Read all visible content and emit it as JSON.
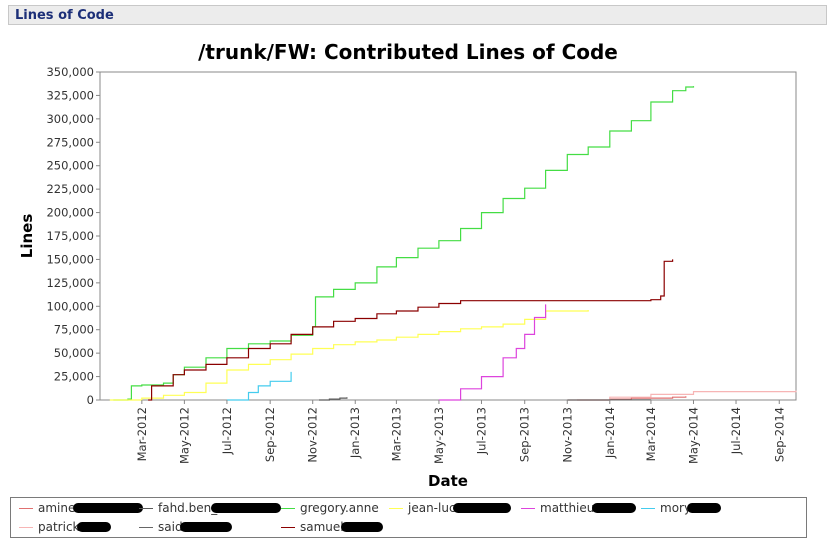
{
  "header": {
    "title": "Lines of Code"
  },
  "chart_data": {
    "type": "line",
    "title": "/trunk/FW: Contributed Lines of Code",
    "xlabel": "Date",
    "ylabel": "Lines",
    "xlim": [
      "2012-01-01",
      "2014-09-25"
    ],
    "ylim": [
      0,
      350000
    ],
    "y_ticks": [
      0,
      25000,
      50000,
      75000,
      100000,
      125000,
      150000,
      175000,
      200000,
      225000,
      250000,
      275000,
      300000,
      325000,
      350000
    ],
    "y_tick_labels": [
      "0",
      "25,000",
      "50,000",
      "75,000",
      "100,000",
      "125,000",
      "150,000",
      "175,000",
      "200,000",
      "225,000",
      "250,000",
      "275,000",
      "300,000",
      "325,000",
      "350,000"
    ],
    "x_ticks": [
      "2012-03-01",
      "2012-05-01",
      "2012-07-01",
      "2012-09-01",
      "2012-11-01",
      "2013-01-01",
      "2013-03-01",
      "2013-05-01",
      "2013-07-01",
      "2013-09-01",
      "2013-11-01",
      "2014-01-01",
      "2014-03-01",
      "2014-05-01",
      "2014-07-01",
      "2014-09-01"
    ],
    "x_tick_labels": [
      "Mar-2012",
      "May-2012",
      "Jul-2012",
      "Sep-2012",
      "Nov-2012",
      "Jan-2013",
      "Mar-2013",
      "May-2013",
      "Jul-2013",
      "Sep-2013",
      "Nov-2013",
      "Jan-2014",
      "Mar-2014",
      "May-2014",
      "Jul-2014",
      "Sep-2014"
    ],
    "grid": false,
    "legend_position": "bottom",
    "series": [
      {
        "name": "amine.",
        "color": "#e07070",
        "points": [
          [
            "2013-11-15",
            0
          ],
          [
            "2014-01-01",
            1000
          ],
          [
            "2014-02-01",
            2000
          ],
          [
            "2014-04-01",
            3000
          ],
          [
            "2014-04-20",
            4000
          ]
        ]
      },
      {
        "name": "fahd.ben_",
        "color": "#5a5a5a",
        "points": [
          [
            "2012-11-10",
            0
          ],
          [
            "2012-11-25",
            1000
          ],
          [
            "2012-12-10",
            2000
          ],
          [
            "2012-12-20",
            3000
          ]
        ]
      },
      {
        "name": "gregory.anne",
        "color": "#44dd44",
        "points": [
          [
            "2012-01-20",
            0
          ],
          [
            "2012-02-10",
            1000
          ],
          [
            "2012-02-15",
            15000
          ],
          [
            "2012-03-01",
            16000
          ],
          [
            "2012-04-01",
            18000
          ],
          [
            "2012-04-15",
            27000
          ],
          [
            "2012-05-01",
            35000
          ],
          [
            "2012-06-01",
            45000
          ],
          [
            "2012-07-01",
            55000
          ],
          [
            "2012-08-01",
            60000
          ],
          [
            "2012-09-01",
            63000
          ],
          [
            "2012-10-01",
            69000
          ],
          [
            "2012-11-01",
            78000
          ],
          [
            "2012-11-05",
            110000
          ],
          [
            "2012-12-01",
            118000
          ],
          [
            "2013-01-01",
            125000
          ],
          [
            "2013-02-01",
            142000
          ],
          [
            "2013-03-01",
            152000
          ],
          [
            "2013-04-01",
            162000
          ],
          [
            "2013-05-01",
            170000
          ],
          [
            "2013-06-01",
            183000
          ],
          [
            "2013-07-01",
            200000
          ],
          [
            "2013-08-01",
            215000
          ],
          [
            "2013-09-01",
            226000
          ],
          [
            "2013-10-01",
            245000
          ],
          [
            "2013-11-01",
            262000
          ],
          [
            "2013-12-01",
            270000
          ],
          [
            "2014-01-01",
            287000
          ],
          [
            "2014-02-01",
            298000
          ],
          [
            "2014-03-01",
            318000
          ],
          [
            "2014-04-01",
            330000
          ],
          [
            "2014-04-20",
            334000
          ],
          [
            "2014-05-01",
            335000
          ]
        ]
      },
      {
        "name": "jean-luc.",
        "color": "#ffff55",
        "points": [
          [
            "2012-01-15",
            0
          ],
          [
            "2012-03-01",
            2000
          ],
          [
            "2012-04-01",
            5000
          ],
          [
            "2012-05-01",
            8000
          ],
          [
            "2012-06-01",
            18000
          ],
          [
            "2012-07-01",
            32000
          ],
          [
            "2012-08-01",
            38000
          ],
          [
            "2012-09-01",
            43000
          ],
          [
            "2012-10-01",
            49000
          ],
          [
            "2012-11-01",
            55000
          ],
          [
            "2012-12-01",
            59000
          ],
          [
            "2013-01-01",
            62000
          ],
          [
            "2013-02-01",
            64000
          ],
          [
            "2013-03-01",
            67000
          ],
          [
            "2013-04-01",
            70000
          ],
          [
            "2013-05-01",
            73000
          ],
          [
            "2013-06-01",
            76000
          ],
          [
            "2013-07-01",
            78000
          ],
          [
            "2013-08-01",
            81000
          ],
          [
            "2013-09-01",
            86000
          ],
          [
            "2013-10-01",
            95000
          ],
          [
            "2013-12-01",
            96000
          ]
        ]
      },
      {
        "name": "matthieu.",
        "color": "#dd44dd",
        "points": [
          [
            "2013-05-01",
            0
          ],
          [
            "2013-06-01",
            12000
          ],
          [
            "2013-07-01",
            25000
          ],
          [
            "2013-08-01",
            45000
          ],
          [
            "2013-08-20",
            55000
          ],
          [
            "2013-09-01",
            70000
          ],
          [
            "2013-09-15",
            88000
          ],
          [
            "2013-10-01",
            102000
          ]
        ]
      },
      {
        "name": "mory.",
        "color": "#44ccee",
        "points": [
          [
            "2012-07-01",
            0
          ],
          [
            "2012-08-01",
            8000
          ],
          [
            "2012-08-15",
            15000
          ],
          [
            "2012-09-01",
            20000
          ],
          [
            "2012-10-01",
            30000
          ]
        ]
      },
      {
        "name": "patrick.",
        "color": "#f7b5b5",
        "points": [
          [
            "2013-11-01",
            0
          ],
          [
            "2014-01-01",
            3000
          ],
          [
            "2014-03-01",
            6000
          ],
          [
            "2014-05-01",
            9000
          ],
          [
            "2014-09-25",
            10000
          ]
        ]
      },
      {
        "name": "said.",
        "color": "#666666",
        "points": [
          [
            "2013-11-01",
            0
          ],
          [
            "2014-01-01",
            200
          ],
          [
            "2014-03-01",
            500
          ]
        ]
      },
      {
        "name": "samuel.",
        "color": "#8b0000",
        "points": [
          [
            "2012-03-10",
            0
          ],
          [
            "2012-03-15",
            15000
          ],
          [
            "2012-04-15",
            27000
          ],
          [
            "2012-05-01",
            32000
          ],
          [
            "2012-06-01",
            38000
          ],
          [
            "2012-07-01",
            45000
          ],
          [
            "2012-08-01",
            55000
          ],
          [
            "2012-09-01",
            60000
          ],
          [
            "2012-10-01",
            70000
          ],
          [
            "2012-11-01",
            78000
          ],
          [
            "2012-12-01",
            84000
          ],
          [
            "2013-01-01",
            87000
          ],
          [
            "2013-02-01",
            92000
          ],
          [
            "2013-03-01",
            95000
          ],
          [
            "2013-04-01",
            99000
          ],
          [
            "2013-05-01",
            103000
          ],
          [
            "2013-06-01",
            106000
          ],
          [
            "2014-03-01",
            107000
          ],
          [
            "2014-03-15",
            111000
          ],
          [
            "2014-03-20",
            148000
          ],
          [
            "2014-04-01",
            150000
          ]
        ]
      }
    ]
  }
}
